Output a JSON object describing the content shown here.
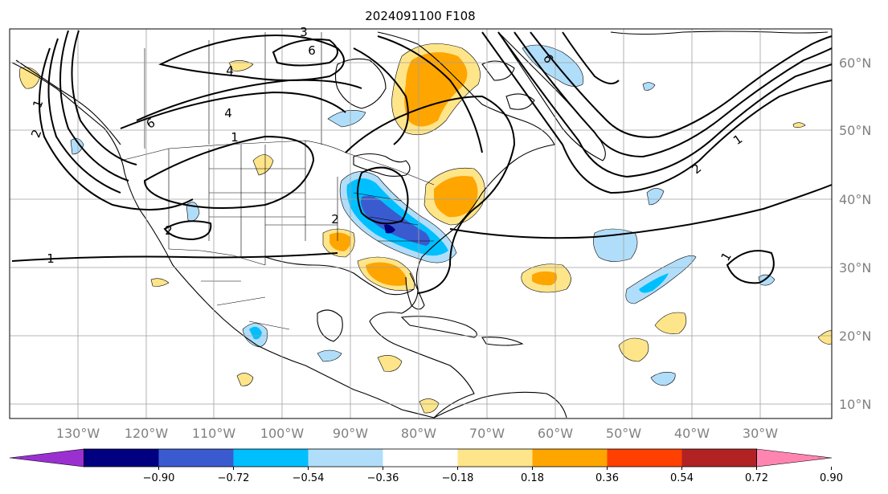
{
  "title": "2024091100 F108",
  "lon_labels": [
    "130°W",
    "120°W",
    "110°W",
    "100°W",
    "90°W",
    "80°W",
    "70°W",
    "60°W",
    "50°W",
    "40°W",
    "30°W"
  ],
  "lat_labels": [
    "60°N",
    "50°N",
    "40°N",
    "30°N",
    "20°N",
    "10°N"
  ],
  "colorbar": {
    "tick_labels": [
      "−0.90",
      "−0.72",
      "−0.54",
      "−0.36",
      "−0.18",
      "0.18",
      "0.36",
      "0.54",
      "0.72",
      "0.90"
    ],
    "colors": [
      "#9b30d0",
      "#000080",
      "#3a5bd0",
      "#00bfff",
      "#b0defa",
      "#ffffff",
      "#ffe58a",
      "#ffa500",
      "#ff4000",
      "#b22222",
      "#ff85b0"
    ]
  },
  "contour_labels": [
    "1",
    "1",
    "1",
    "1",
    "2",
    "2",
    "2",
    "4",
    "4",
    "6",
    "6",
    "6",
    "1",
    "2",
    "3"
  ],
  "colors": {
    "coast": "#000000",
    "grid": "#a0a0a0",
    "contour": "#000000"
  }
}
